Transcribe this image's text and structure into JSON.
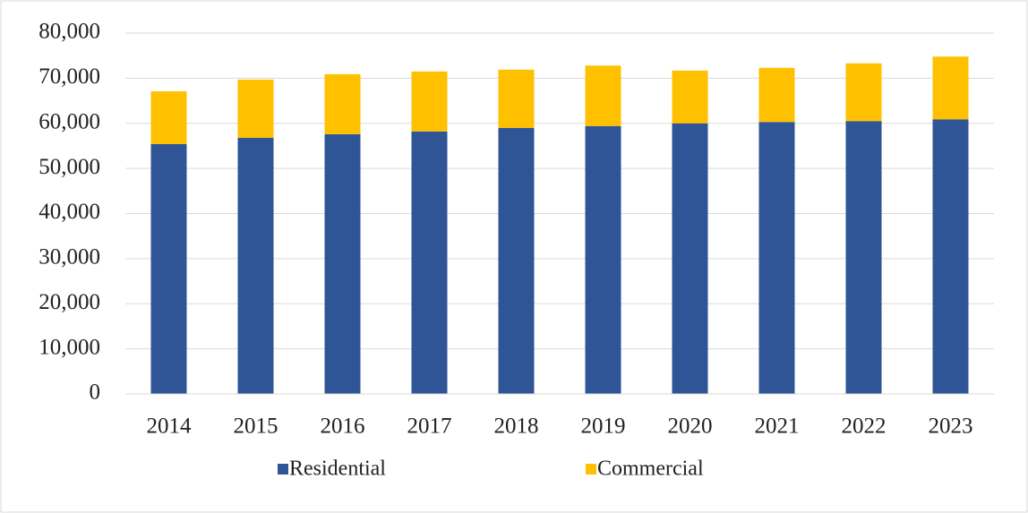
{
  "chart_data": {
    "type": "stacked_bar",
    "categories": [
      "2014",
      "2015",
      "2016",
      "2017",
      "2018",
      "2019",
      "2020",
      "2021",
      "2022",
      "2023"
    ],
    "series": [
      {
        "name": "Residential",
        "color": "#2f5597",
        "values": [
          55400,
          56800,
          57600,
          58200,
          59000,
          59400,
          60000,
          60300,
          60500,
          60900
        ]
      },
      {
        "name": "Commercial",
        "color": "#ffc000",
        "values": [
          11700,
          12900,
          13300,
          13300,
          12900,
          13400,
          11700,
          12000,
          12800,
          13900
        ]
      }
    ],
    "ylim": [
      0,
      80000
    ],
    "yticks": [
      0,
      {
        "value": 10000,
        "label": "10,000"
      },
      {
        "value": 20000,
        "label": "20,000"
      },
      {
        "value": 30000,
        "label": "30,000"
      },
      {
        "value": 40000,
        "label": "40,000"
      },
      {
        "value": 50000,
        "label": "50,000"
      },
      {
        "value": 60000,
        "label": "60,000"
      },
      {
        "value": 70000,
        "label": "70,000"
      },
      {
        "value": 80000,
        "label": "80,000"
      }
    ],
    "grid": true,
    "legend": "bottom"
  }
}
